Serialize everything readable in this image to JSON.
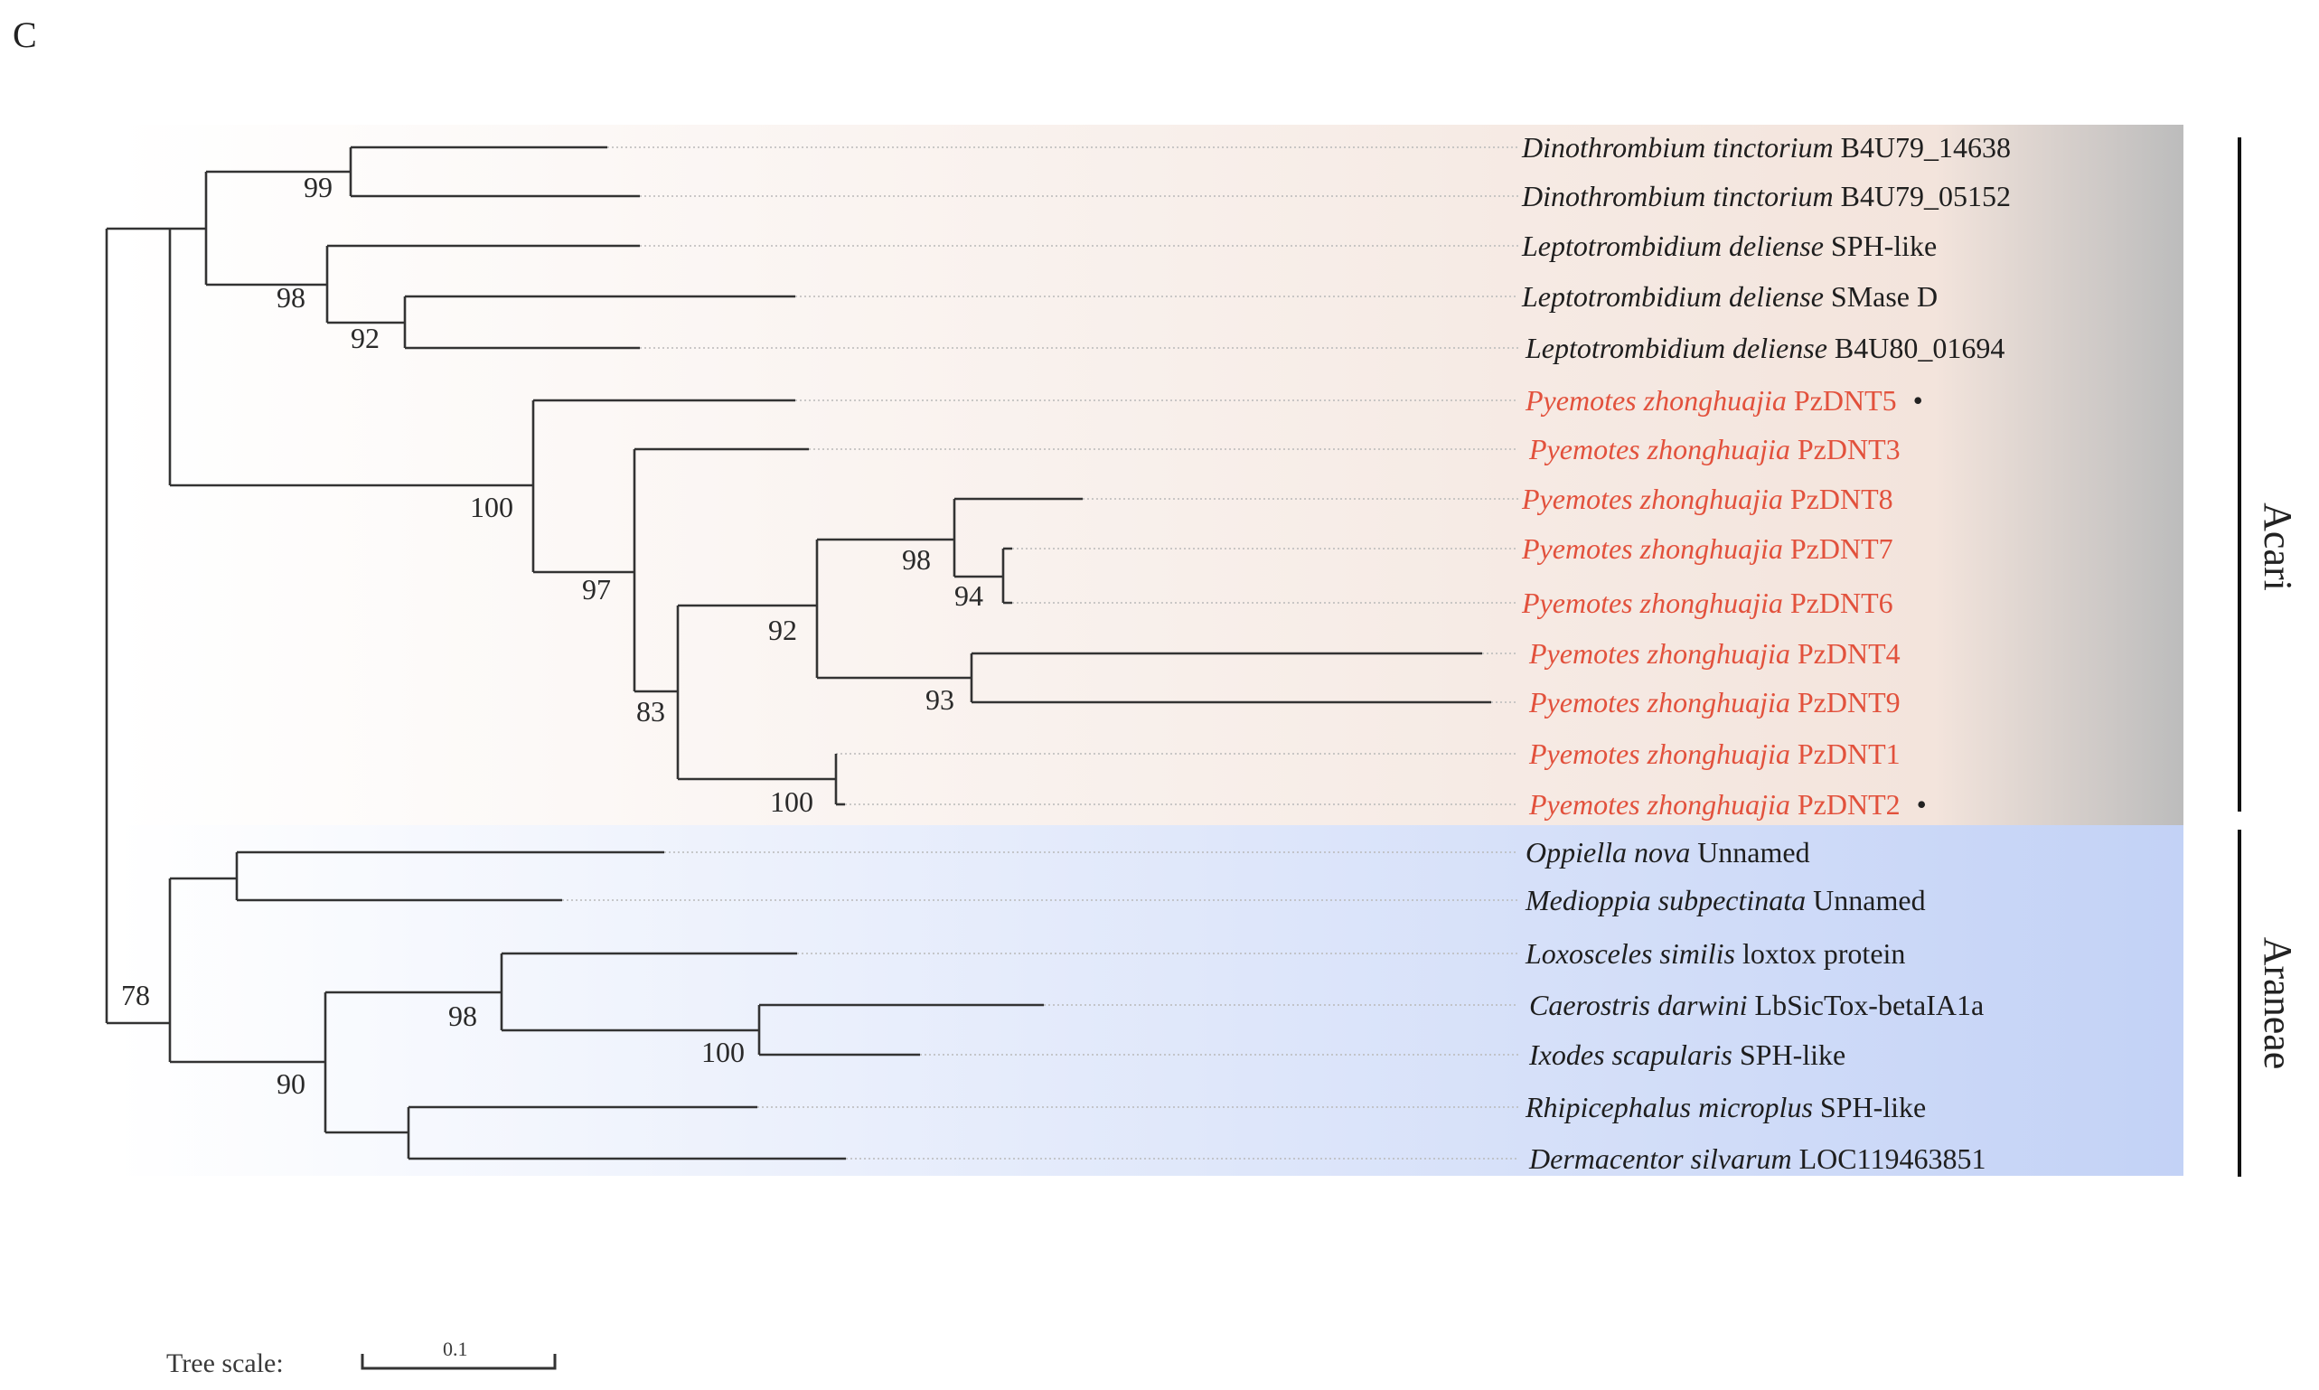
{
  "panel_label": "C",
  "taxa": [
    {
      "species": "Dinothrombium tinctorium",
      "gene": "B4U79_14638",
      "group": "acari"
    },
    {
      "species": "Dinothrombium tinctorium",
      "gene": "B4U79_05152",
      "group": "acari"
    },
    {
      "species": "Leptotrombidium deliense",
      "gene": "SPH-like",
      "group": "acari"
    },
    {
      "species": "Leptotrombidium deliense",
      "gene": "SMase D",
      "group": "acari"
    },
    {
      "species": "Leptotrombidium deliense",
      "gene": "B4U80_01694",
      "group": "acari"
    },
    {
      "species": "Pyemotes zhonghuajia",
      "gene": "PzDNT5",
      "group": "acari",
      "highlight": true,
      "marker": "•"
    },
    {
      "species": "Pyemotes zhonghuajia",
      "gene": "PzDNT3",
      "group": "acari",
      "highlight": true
    },
    {
      "species": "Pyemotes zhonghuajia",
      "gene": "PzDNT8",
      "group": "acari",
      "highlight": true
    },
    {
      "species": "Pyemotes zhonghuajia",
      "gene": "PzDNT7",
      "group": "acari",
      "highlight": true
    },
    {
      "species": "Pyemotes zhonghuajia",
      "gene": "PzDNT6",
      "group": "acari",
      "highlight": true
    },
    {
      "species": "Pyemotes zhonghuajia",
      "gene": "PzDNT4",
      "group": "acari",
      "highlight": true
    },
    {
      "species": "Pyemotes zhonghuajia",
      "gene": "PzDNT9",
      "group": "acari",
      "highlight": true
    },
    {
      "species": "Pyemotes zhonghuajia",
      "gene": "PzDNT1",
      "group": "acari",
      "highlight": true
    },
    {
      "species": "Pyemotes zhonghuajia",
      "gene": "PzDNT2",
      "group": "acari",
      "highlight": true,
      "marker": "•"
    },
    {
      "species": "Oppiella nova",
      "gene": "Unnamed",
      "group": "araneae"
    },
    {
      "species": "Medioppia subpectinata",
      "gene": "Unnamed",
      "group": "araneae"
    },
    {
      "species": "Loxosceles similis",
      "gene": "loxtox protein",
      "group": "araneae"
    },
    {
      "species": "Caerostris darwini",
      "gene": "LbSicTox-betaIA1a",
      "group": "araneae"
    },
    {
      "species": "Ixodes scapularis",
      "gene": "SPH-like",
      "group": "araneae"
    },
    {
      "species": "Rhipicephalus microplus",
      "gene": "SPH-like",
      "group": "araneae"
    },
    {
      "species": "Dermacentor silvarum",
      "gene": "LOC119463851",
      "group": "araneae"
    }
  ],
  "support_values": [
    "99",
    "98",
    "92",
    "100",
    "97",
    "83",
    "92",
    "98",
    "94",
    "93",
    "100",
    "78",
    "98",
    "100",
    "90"
  ],
  "clades": [
    {
      "name": "Acari"
    },
    {
      "name": "Araneae"
    }
  ],
  "scale": {
    "label": "Tree scale:",
    "value": "0.1"
  },
  "colors": {
    "highlight_text": "#e2513c",
    "normal_text": "#1e1e1e",
    "branch": "#333333",
    "acari_band_start": "#ffffff",
    "acari_band_end": "#f3e4dc",
    "acari_band_edge": "#bcbcbc",
    "araneae_band_start": "#ffffff",
    "araneae_band_end": "#c3d2f6"
  }
}
